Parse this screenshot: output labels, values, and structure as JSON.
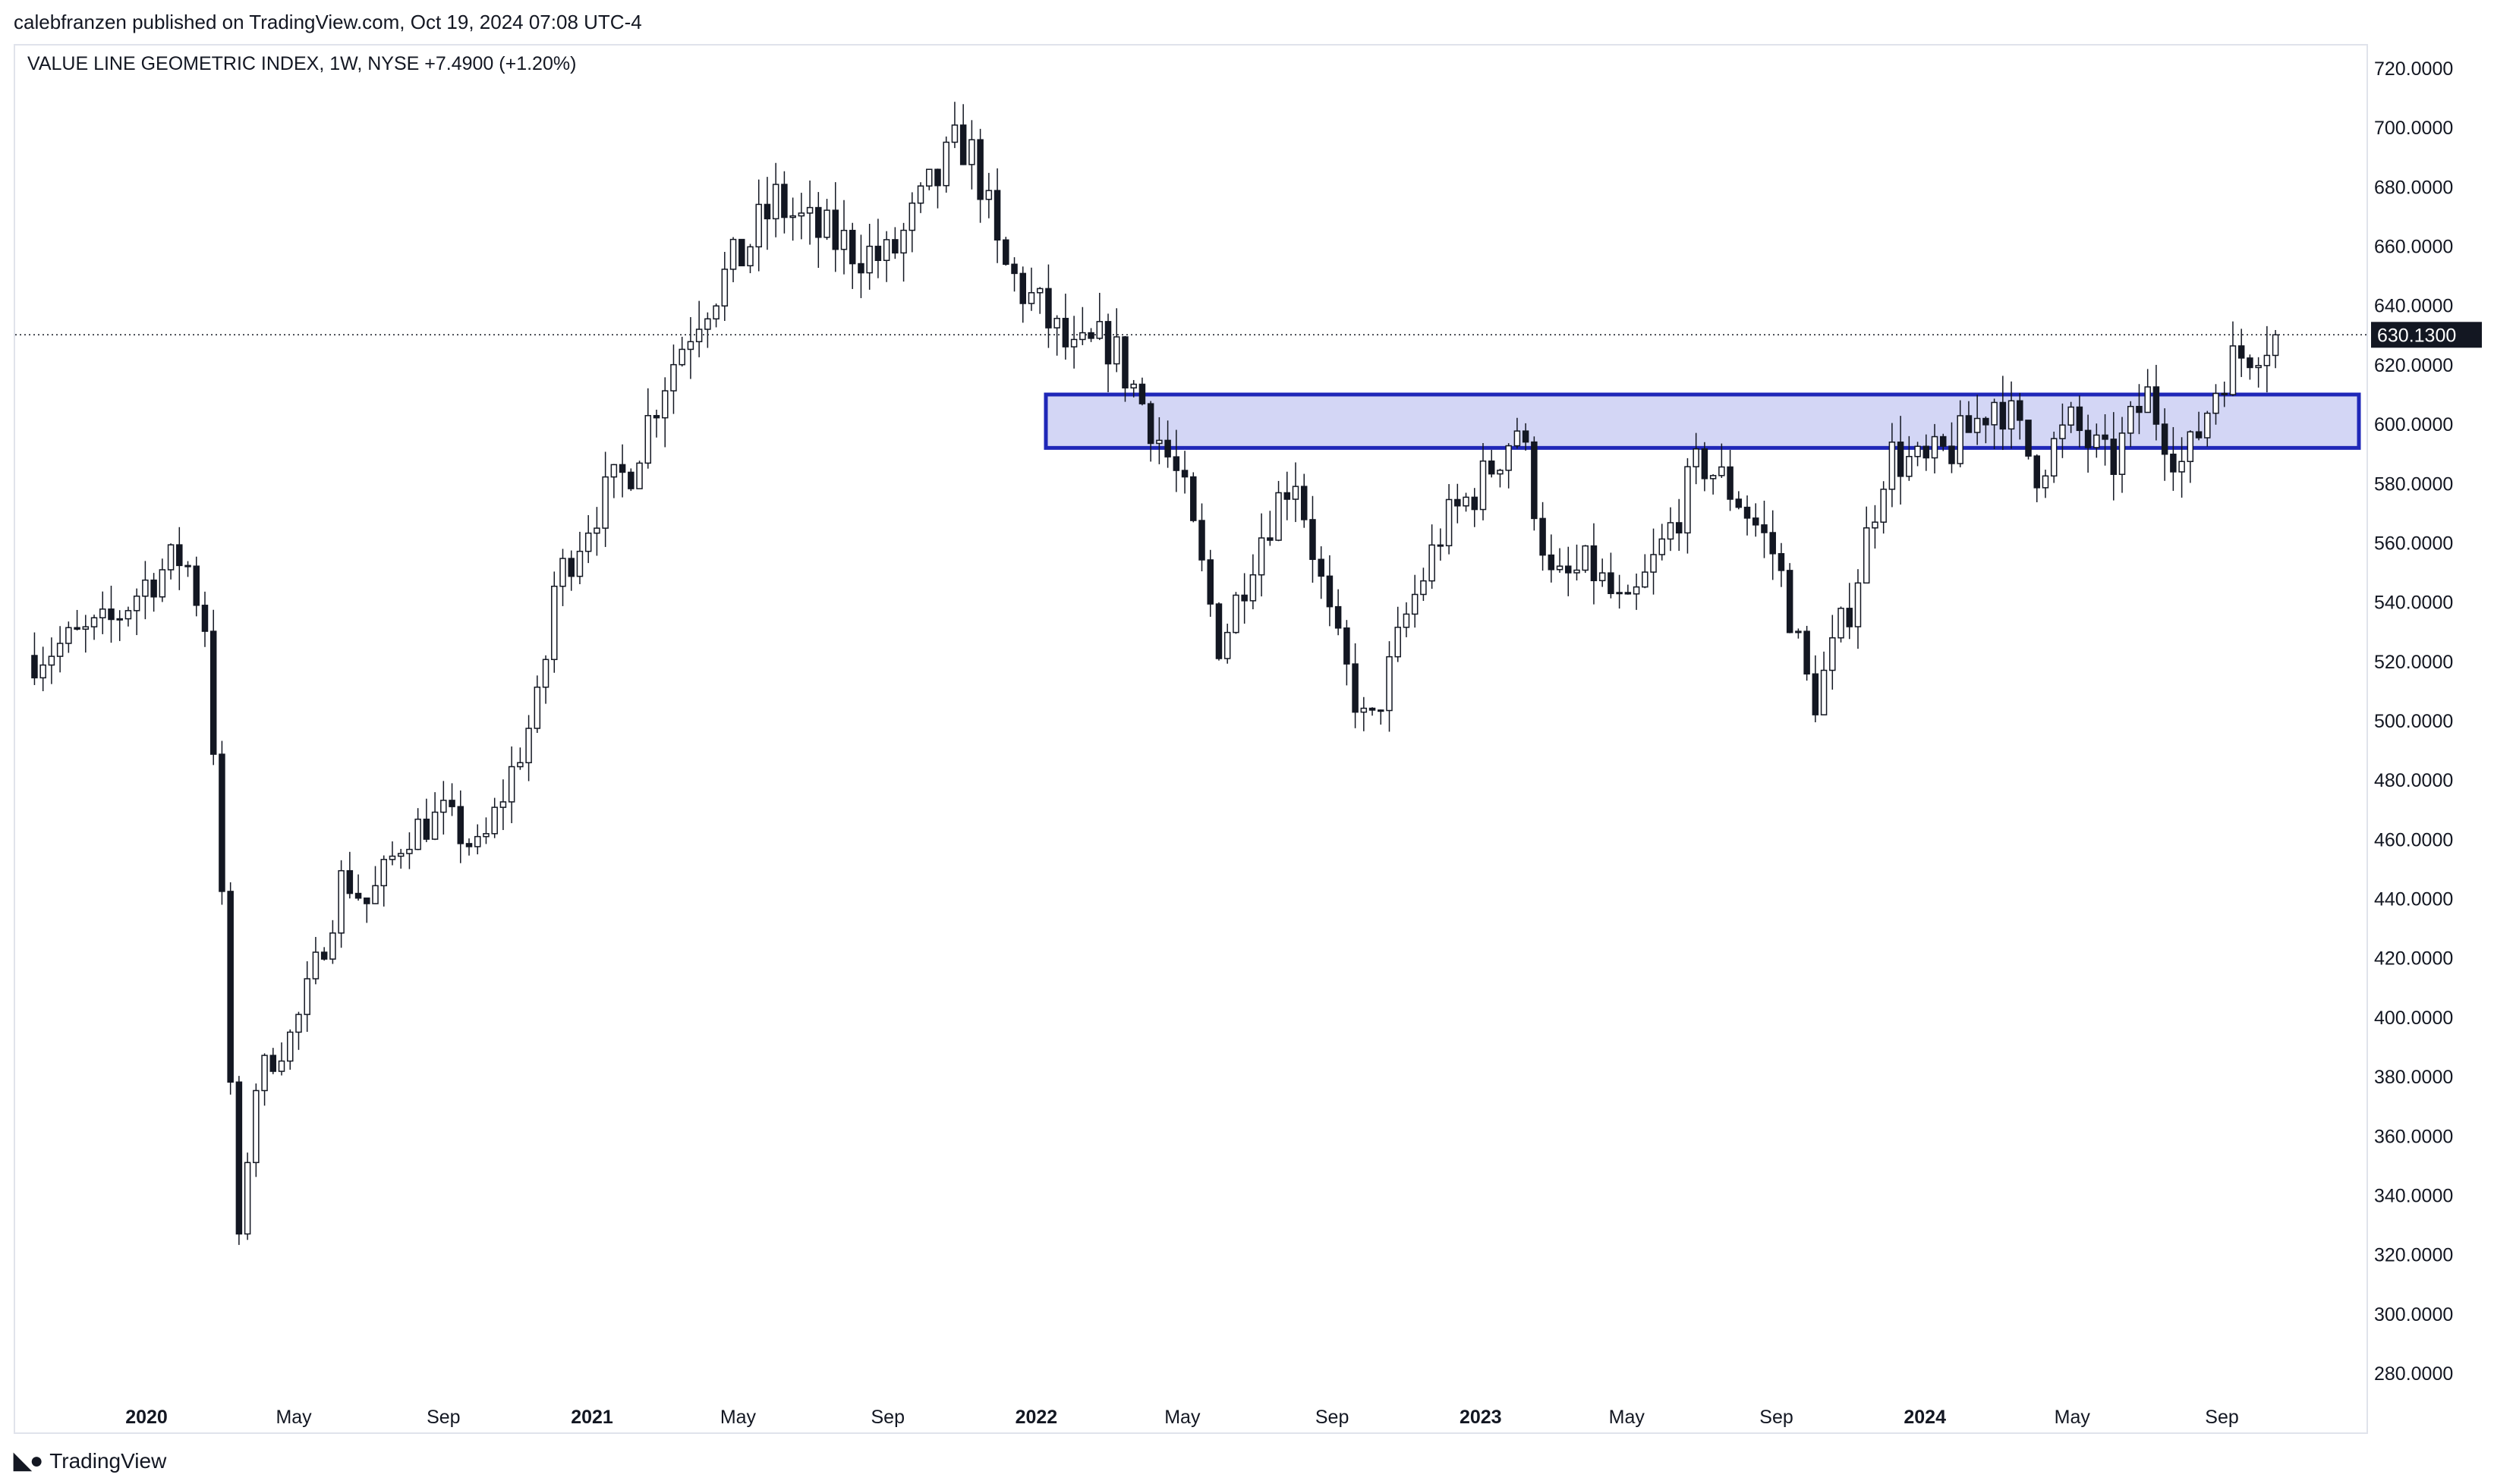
{
  "header": {
    "publisher": "calebfranzen published on TradingView.com, Oct 19, 2024 07:08 UTC-4"
  },
  "legend": {
    "text": "VALUE LINE GEOMETRIC INDEX, 1W, NYSE  +7.4900 (+1.20%)"
  },
  "footer": {
    "brand": "TradingView",
    "logo_icon": "tradingview-logo-icon"
  },
  "colors": {
    "candle": "#131722",
    "up_fill": "#ffffff",
    "down_fill": "#131722",
    "zone_fill": "#d3d6f5",
    "zone_border": "#1f27b8",
    "last_price_bg": "#131722"
  },
  "chart_data": {
    "type": "candlestick",
    "title": "VALUE LINE GEOMETRIC INDEX, 1W, NYSE",
    "ylim": [
      270,
      725
    ],
    "y_ticks": [
      "720.0000",
      "700.0000",
      "680.0000",
      "660.0000",
      "640.0000",
      "620.0000",
      "600.0000",
      "580.0000",
      "560.0000",
      "540.0000",
      "520.0000",
      "500.0000",
      "480.0000",
      "460.0000",
      "440.0000",
      "420.0000",
      "400.0000",
      "380.0000",
      "360.0000",
      "340.0000",
      "320.0000",
      "300.0000",
      "280.0000"
    ],
    "x_ticks": [
      {
        "label": "2020",
        "date": "2020-01",
        "bold": true
      },
      {
        "label": "May",
        "date": "2020-05",
        "bold": false
      },
      {
        "label": "Sep",
        "date": "2020-09",
        "bold": false
      },
      {
        "label": "2021",
        "date": "2021-01",
        "bold": true
      },
      {
        "label": "May",
        "date": "2021-05",
        "bold": false
      },
      {
        "label": "Sep",
        "date": "2021-09",
        "bold": false
      },
      {
        "label": "2022",
        "date": "2022-01",
        "bold": true
      },
      {
        "label": "May",
        "date": "2022-05",
        "bold": false
      },
      {
        "label": "Sep",
        "date": "2022-09",
        "bold": false
      },
      {
        "label": "2023",
        "date": "2023-01",
        "bold": true
      },
      {
        "label": "May",
        "date": "2023-05",
        "bold": false
      },
      {
        "label": "Sep",
        "date": "2023-09",
        "bold": false
      },
      {
        "label": "2024",
        "date": "2024-01",
        "bold": true
      },
      {
        "label": "May",
        "date": "2024-05",
        "bold": false
      },
      {
        "label": "Sep",
        "date": "2024-09",
        "bold": false
      }
    ],
    "last_price": 630.13,
    "last_price_label": "630.1300",
    "zone": {
      "low": 592,
      "high": 610,
      "start": "2021-11",
      "end": "2025-01"
    },
    "anchors": [
      [
        "2019-10",
        522
      ],
      [
        "2019-12",
        532
      ],
      [
        "2020-01",
        547
      ],
      [
        "2020-02",
        556
      ],
      [
        "2020-02-20",
        530
      ],
      [
        "2020-03",
        455
      ],
      [
        "2020-03-10",
        378
      ],
      [
        "2020-03-18",
        315
      ],
      [
        "2020-03-25",
        360
      ],
      [
        "2020-04",
        380
      ],
      [
        "2020-05",
        395
      ],
      [
        "2020-06",
        433
      ],
      [
        "2020-06-10",
        448
      ],
      [
        "2020-07",
        438
      ],
      [
        "2020-08",
        462
      ],
      [
        "2020-09",
        468
      ],
      [
        "2020-10",
        455
      ],
      [
        "2020-11",
        488
      ],
      [
        "2020-11-20",
        508
      ],
      [
        "2020-12",
        545
      ],
      [
        "2021-01",
        570
      ],
      [
        "2021-02",
        585
      ],
      [
        "2021-03",
        615
      ],
      [
        "2021-04",
        640
      ],
      [
        "2021-05",
        655
      ],
      [
        "2021-06",
        675
      ],
      [
        "2021-07",
        665
      ],
      [
        "2021-08",
        660
      ],
      [
        "2021-09",
        655
      ],
      [
        "2021-10",
        675
      ],
      [
        "2021-11",
        696
      ],
      [
        "2021-11-15",
        685
      ],
      [
        "2021-12",
        655
      ],
      [
        "2022-01",
        640
      ],
      [
        "2022-02",
        622
      ],
      [
        "2022-03",
        628
      ],
      [
        "2022-04",
        605
      ],
      [
        "2022-05",
        578
      ],
      [
        "2022-06",
        525
      ],
      [
        "2022-07",
        560
      ],
      [
        "2022-08",
        585
      ],
      [
        "2022-09",
        530
      ],
      [
        "2022-10",
        495
      ],
      [
        "2022-11",
        535
      ],
      [
        "2022-12",
        565
      ],
      [
        "2023-01",
        580
      ],
      [
        "2023-02",
        600
      ],
      [
        "2023-03",
        545
      ],
      [
        "2023-04",
        552
      ],
      [
        "2023-05",
        535
      ],
      [
        "2023-06",
        560
      ],
      [
        "2023-07",
        588
      ],
      [
        "2023-08",
        575
      ],
      [
        "2023-09",
        555
      ],
      [
        "2023-10",
        505
      ],
      [
        "2023-11",
        540
      ],
      [
        "2023-12",
        590
      ],
      [
        "2024-01",
        585
      ],
      [
        "2024-02",
        595
      ],
      [
        "2024-03",
        610
      ],
      [
        "2024-04",
        585
      ],
      [
        "2024-05",
        600
      ],
      [
        "2024-06",
        585
      ],
      [
        "2024-07",
        610
      ],
      [
        "2024-08",
        585
      ],
      [
        "2024-09",
        618
      ],
      [
        "2024-10",
        628
      ],
      [
        "2024-10-18",
        630.13
      ]
    ]
  }
}
